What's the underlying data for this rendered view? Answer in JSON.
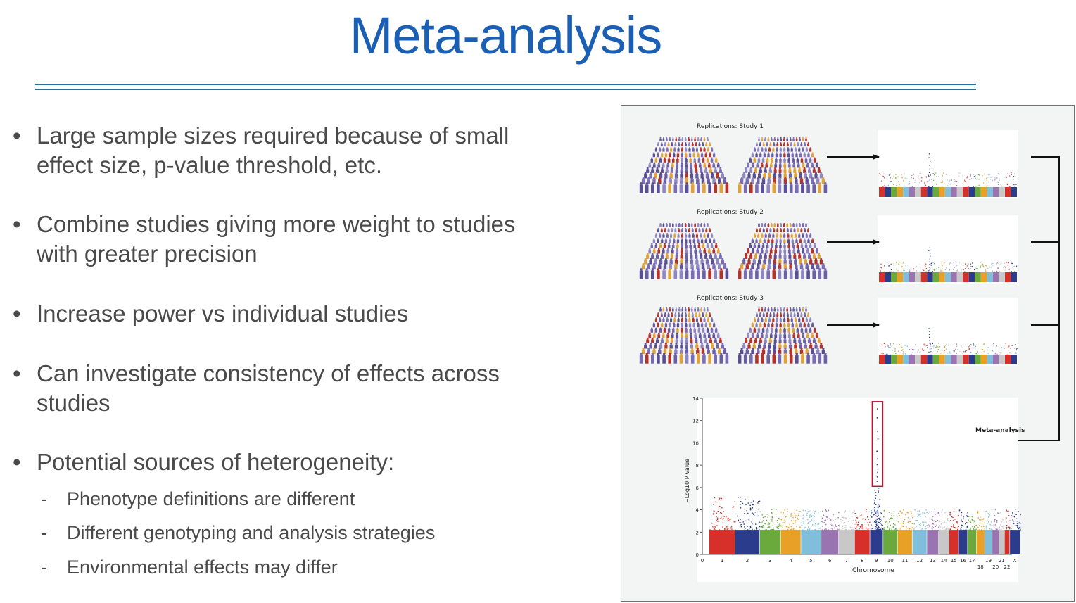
{
  "slide": {
    "title": "Meta-analysis",
    "bullets": [
      {
        "lines": [
          "Large sample sizes required because of small",
          "effect size, p-value threshold, etc."
        ]
      },
      {
        "lines": [
          "Combine studies giving more weight to studies",
          "with greater precision"
        ]
      },
      {
        "lines": [
          "Increase power vs individual studies"
        ]
      },
      {
        "lines": [
          "Can investigate consistency of effects across",
          "studies"
        ]
      },
      {
        "lines": [
          "Potential sources of heterogeneity:"
        ]
      }
    ],
    "sub_bullets": [
      "Phenotype definitions are different",
      "Different genotyping and analysis strategies",
      "Environmental effects may differ"
    ]
  },
  "figure": {
    "replications": [
      "Replications: Study 1",
      "Replications: Study 2",
      "Replications: Study 3"
    ],
    "meta_label": "Meta-analysis",
    "y_axis_label": "−Log10 P Value",
    "x_axis_label": "Chromosome",
    "y_ticks": [
      "0",
      "2",
      "4",
      "6",
      "8",
      "10",
      "12",
      "14"
    ],
    "x_ticks_top": [
      "0",
      "1",
      "2",
      "3",
      "4",
      "5",
      "6",
      "7",
      "8",
      "9",
      "10",
      "11",
      "12",
      "13",
      "14",
      "15",
      "16",
      "17",
      "19",
      "21",
      "X"
    ],
    "x_ticks_bottom": [
      "18",
      "20",
      "22"
    ],
    "chromosome_colors": [
      "#d7302a",
      "#2b3c8c",
      "#6aaa3c",
      "#e8a126",
      "#7fbfdc",
      "#9a74b0",
      "#c8c8c8"
    ],
    "highlight_color": "#c8102e"
  }
}
